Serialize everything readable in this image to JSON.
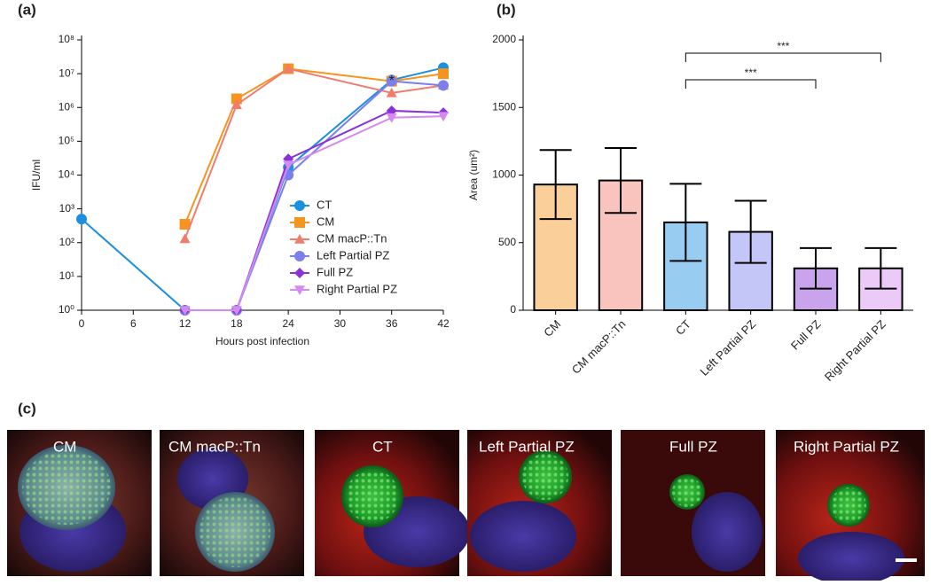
{
  "chart_data": [
    {
      "type": "line",
      "title": "(a)",
      "x_label": "Hours post infection",
      "y_label": "IFU/ml",
      "log_y": true,
      "legend": "lower right",
      "annotation": {
        "text": "*",
        "x": 36
      },
      "xlim": [
        0,
        42
      ],
      "xticks": [
        0,
        6,
        12,
        18,
        24,
        30,
        36,
        42
      ],
      "ylim": [
        1,
        100000000
      ],
      "yticks": [
        {
          "value": 1,
          "label": "10⁰"
        },
        {
          "value": 10,
          "label": "10¹"
        },
        {
          "value": 100,
          "label": "10²"
        },
        {
          "value": 1000,
          "label": "10³"
        },
        {
          "value": 10000,
          "label": "10⁴"
        },
        {
          "value": 100000,
          "label": "10⁵"
        },
        {
          "value": 1000000,
          "label": "10⁶"
        },
        {
          "value": 10000000,
          "label": "10⁷"
        },
        {
          "value": 100000000,
          "label": "10⁸"
        }
      ],
      "series": [
        {
          "name": "CT",
          "color": "#1b8fe0",
          "marker": "circle",
          "x": [
            0,
            12,
            18,
            24,
            36,
            42
          ],
          "values": [
            500,
            1,
            1,
            17000,
            6500000,
            15000000
          ]
        },
        {
          "name": "CM",
          "color": "#f7941d",
          "marker": "square",
          "x": [
            12,
            18,
            24,
            36,
            42
          ],
          "values": [
            350,
            1800000,
            14000000,
            6000000,
            10000000
          ]
        },
        {
          "name": "CM macP::Tn",
          "color": "#f07c6c",
          "marker": "triangle",
          "x": [
            12,
            18,
            24,
            36,
            42
          ],
          "values": [
            130,
            1200000,
            14000000,
            2700000,
            4500000
          ]
        },
        {
          "name": "Left Partial PZ",
          "color": "#7b80ea",
          "marker": "circle",
          "x": [
            12,
            18,
            24,
            36,
            42
          ],
          "values": [
            1,
            1,
            10000,
            6000000,
            4500000
          ]
        },
        {
          "name": "Full PZ",
          "color": "#8a32d8",
          "marker": "diamond",
          "x": [
            12,
            18,
            24,
            36,
            42
          ],
          "values": [
            1,
            1,
            30000,
            800000,
            700000
          ]
        },
        {
          "name": "Right Partial PZ",
          "color": "#d58af0",
          "marker": "triangle-down",
          "x": [
            12,
            18,
            24,
            36,
            42
          ],
          "values": [
            1,
            1,
            20000,
            500000,
            550000
          ]
        }
      ]
    },
    {
      "type": "bar",
      "title": "(b)",
      "y_label": "Area (um²)",
      "categories": [
        "CM",
        "CM macP::Tn",
        "CT",
        "Left Partial PZ",
        "Full PZ",
        "Right Partial PZ"
      ],
      "values": [
        930,
        960,
        650,
        580,
        310,
        310
      ],
      "errors": [
        255,
        240,
        285,
        230,
        150,
        150
      ],
      "colors": [
        "#f7941d",
        "#f07c6c",
        "#1b8fe0",
        "#7b80ea",
        "#8a32d8",
        "#d58af0"
      ],
      "ylim": [
        0,
        2000
      ],
      "yticks": [
        0,
        500,
        1000,
        1500,
        2000
      ],
      "annotations": [
        {
          "text": "***",
          "between": [
            2,
            4
          ]
        },
        {
          "text": "***",
          "between": [
            2,
            5
          ]
        }
      ]
    }
  ],
  "micrographs": {
    "label": "(c)",
    "images": [
      "CM",
      "CM macP::Tn",
      "CT",
      "Left Partial PZ",
      "Full PZ",
      "Right Partial PZ"
    ]
  }
}
